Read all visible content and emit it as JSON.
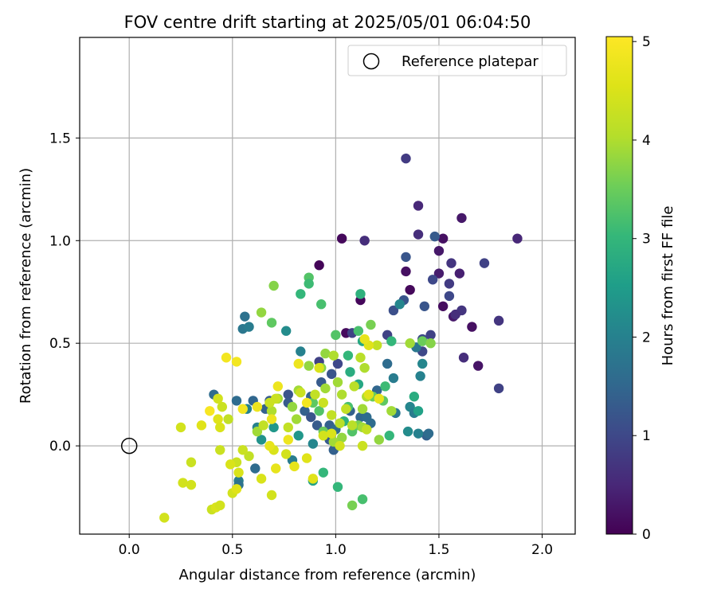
{
  "chart_data": {
    "type": "scatter",
    "title": "FOV centre drift starting at 2025/05/01 06:04:50",
    "xlabel": "Angular distance from reference (arcmin)",
    "ylabel": "Rotation from reference (arcmin)",
    "xlim": [
      -0.24,
      2.16
    ],
    "ylim": [
      -0.43,
      1.99
    ],
    "x_ticks": [
      0.0,
      0.5,
      1.0,
      1.5,
      2.0
    ],
    "x_tick_labels": [
      "0.0",
      "0.5",
      "1.0",
      "1.5",
      "2.0"
    ],
    "y_ticks": [
      0.0,
      0.5,
      1.0,
      1.5
    ],
    "y_tick_labels": [
      "0.0",
      "0.5",
      "1.0",
      "1.5"
    ],
    "grid": true,
    "legend": {
      "position": "top-right",
      "entries": [
        "Reference platepar"
      ]
    },
    "reference_point": {
      "label": "Reference platepar",
      "x": 0.0,
      "y": 0.0,
      "marker": "open-circle"
    },
    "colorbar": {
      "label": "Hours from first FF file",
      "colormap": "viridis",
      "range": [
        0,
        5.05
      ],
      "ticks": [
        0,
        1,
        2,
        3,
        4,
        5
      ],
      "tick_labels": [
        "0",
        "1",
        "2",
        "3",
        "4",
        "5"
      ]
    },
    "points": [
      {
        "x": 0.92,
        "y": 0.88,
        "h": 0.05
      },
      {
        "x": 1.03,
        "y": 1.01,
        "h": 0.1
      },
      {
        "x": 1.12,
        "y": 0.71,
        "h": 0.08
      },
      {
        "x": 1.05,
        "y": 0.55,
        "h": 0.12
      },
      {
        "x": 1.36,
        "y": 0.76,
        "h": 0.1
      },
      {
        "x": 1.34,
        "y": 0.85,
        "h": 0.2
      },
      {
        "x": 1.52,
        "y": 0.68,
        "h": 0.15
      },
      {
        "x": 1.52,
        "y": 1.01,
        "h": 0.2
      },
      {
        "x": 1.61,
        "y": 1.11,
        "h": 0.3
      },
      {
        "x": 1.66,
        "y": 0.58,
        "h": 0.2
      },
      {
        "x": 1.69,
        "y": 0.39,
        "h": 0.25
      },
      {
        "x": 1.57,
        "y": 0.63,
        "h": 0.3
      },
      {
        "x": 1.6,
        "y": 0.84,
        "h": 0.4
      },
      {
        "x": 1.5,
        "y": 0.95,
        "h": 0.3
      },
      {
        "x": 1.5,
        "y": 0.84,
        "h": 0.35
      },
      {
        "x": 1.4,
        "y": 1.17,
        "h": 0.5
      },
      {
        "x": 1.34,
        "y": 1.4,
        "h": 0.8
      },
      {
        "x": 1.4,
        "y": 1.03,
        "h": 0.6
      },
      {
        "x": 1.14,
        "y": 1.0,
        "h": 0.6
      },
      {
        "x": 1.88,
        "y": 1.01,
        "h": 0.5
      },
      {
        "x": 1.79,
        "y": 0.61,
        "h": 0.7
      },
      {
        "x": 1.79,
        "y": 0.28,
        "h": 0.9
      },
      {
        "x": 1.62,
        "y": 0.43,
        "h": 0.6
      },
      {
        "x": 1.61,
        "y": 0.66,
        "h": 0.7
      },
      {
        "x": 1.58,
        "y": 0.64,
        "h": 0.6
      },
      {
        "x": 1.55,
        "y": 0.79,
        "h": 0.8
      },
      {
        "x": 1.56,
        "y": 0.89,
        "h": 0.7
      },
      {
        "x": 1.72,
        "y": 0.89,
        "h": 0.9
      },
      {
        "x": 1.48,
        "y": 1.02,
        "h": 1.3
      },
      {
        "x": 1.47,
        "y": 0.81,
        "h": 1.0
      },
      {
        "x": 1.55,
        "y": 0.73,
        "h": 1.0
      },
      {
        "x": 1.43,
        "y": 0.68,
        "h": 1.2
      },
      {
        "x": 1.46,
        "y": 0.54,
        "h": 0.9
      },
      {
        "x": 1.42,
        "y": 0.52,
        "h": 1.0
      },
      {
        "x": 1.42,
        "y": 0.46,
        "h": 1.0
      },
      {
        "x": 1.33,
        "y": 0.71,
        "h": 1.2
      },
      {
        "x": 1.28,
        "y": 0.66,
        "h": 1.1
      },
      {
        "x": 1.34,
        "y": 0.92,
        "h": 1.2
      },
      {
        "x": 1.25,
        "y": 0.54,
        "h": 0.9
      },
      {
        "x": 1.08,
        "y": 0.55,
        "h": 0.9
      },
      {
        "x": 1.01,
        "y": 0.4,
        "h": 1.0
      },
      {
        "x": 0.92,
        "y": 0.41,
        "h": 0.9
      },
      {
        "x": 0.98,
        "y": 0.35,
        "h": 1.2
      },
      {
        "x": 0.93,
        "y": 0.31,
        "h": 1.3
      },
      {
        "x": 0.88,
        "y": 0.24,
        "h": 1.4
      },
      {
        "x": 0.85,
        "y": 0.17,
        "h": 1.4
      },
      {
        "x": 0.77,
        "y": 0.25,
        "h": 1.2
      },
      {
        "x": 0.77,
        "y": 0.21,
        "h": 1.3
      },
      {
        "x": 0.68,
        "y": 0.22,
        "h": 1.3
      },
      {
        "x": 0.66,
        "y": 0.18,
        "h": 1.4
      },
      {
        "x": 0.6,
        "y": 0.22,
        "h": 1.5
      },
      {
        "x": 0.52,
        "y": 0.22,
        "h": 1.6
      },
      {
        "x": 0.41,
        "y": 0.25,
        "h": 1.6
      },
      {
        "x": 0.56,
        "y": 0.63,
        "h": 1.7
      },
      {
        "x": 0.55,
        "y": 0.57,
        "h": 1.8
      },
      {
        "x": 0.58,
        "y": 0.58,
        "h": 1.9
      },
      {
        "x": 0.76,
        "y": 0.56,
        "h": 2.2
      },
      {
        "x": 0.83,
        "y": 0.46,
        "h": 2.0
      },
      {
        "x": 0.88,
        "y": 0.14,
        "h": 1.2
      },
      {
        "x": 0.91,
        "y": 0.1,
        "h": 1.3
      },
      {
        "x": 0.97,
        "y": 0.1,
        "h": 1.4
      },
      {
        "x": 0.98,
        "y": 0.06,
        "h": 1.3
      },
      {
        "x": 0.97,
        "y": 0.03,
        "h": 1.3
      },
      {
        "x": 0.99,
        "y": -0.02,
        "h": 1.4
      },
      {
        "x": 1.0,
        "y": 0.08,
        "h": 1.6
      },
      {
        "x": 1.07,
        "y": 0.17,
        "h": 1.4
      },
      {
        "x": 1.12,
        "y": 0.14,
        "h": 1.5
      },
      {
        "x": 1.15,
        "y": 0.14,
        "h": 1.6
      },
      {
        "x": 1.17,
        "y": 0.11,
        "h": 1.6
      },
      {
        "x": 1.2,
        "y": 0.27,
        "h": 1.5
      },
      {
        "x": 1.25,
        "y": 0.4,
        "h": 1.6
      },
      {
        "x": 1.28,
        "y": 0.33,
        "h": 1.9
      },
      {
        "x": 1.29,
        "y": 0.16,
        "h": 1.8
      },
      {
        "x": 1.36,
        "y": 0.19,
        "h": 2.1
      },
      {
        "x": 1.38,
        "y": 0.16,
        "h": 1.9
      },
      {
        "x": 1.41,
        "y": 0.34,
        "h": 2.0
      },
      {
        "x": 1.42,
        "y": 0.4,
        "h": 2.1
      },
      {
        "x": 1.44,
        "y": 0.05,
        "h": 1.4
      },
      {
        "x": 1.45,
        "y": 0.06,
        "h": 1.6
      },
      {
        "x": 1.4,
        "y": 0.06,
        "h": 2.0
      },
      {
        "x": 1.35,
        "y": 0.07,
        "h": 2.2
      },
      {
        "x": 1.39,
        "y": 0.48,
        "h": 1.8
      },
      {
        "x": 1.31,
        "y": 0.69,
        "h": 2.1
      },
      {
        "x": 0.61,
        "y": -0.11,
        "h": 1.6
      },
      {
        "x": 0.53,
        "y": -0.17,
        "h": 1.9
      },
      {
        "x": 0.53,
        "y": -0.19,
        "h": 1.7
      },
      {
        "x": 0.7,
        "y": 0.09,
        "h": 2.4
      },
      {
        "x": 0.62,
        "y": 0.09,
        "h": 2.0
      },
      {
        "x": 0.57,
        "y": 0.18,
        "h": 2.0
      },
      {
        "x": 0.64,
        "y": 0.03,
        "h": 2.3
      },
      {
        "x": 0.82,
        "y": 0.05,
        "h": 2.4
      },
      {
        "x": 0.89,
        "y": 0.01,
        "h": 2.1
      },
      {
        "x": 0.79,
        "y": -0.07,
        "h": 1.9
      },
      {
        "x": 0.89,
        "y": -0.17,
        "h": 2.6
      },
      {
        "x": 0.94,
        "y": -0.13,
        "h": 3.0
      },
      {
        "x": 1.01,
        "y": -0.2,
        "h": 3.0
      },
      {
        "x": 1.13,
        "y": -0.26,
        "h": 3.2
      },
      {
        "x": 1.08,
        "y": -0.29,
        "h": 3.6
      },
      {
        "x": 1.04,
        "y": 0.12,
        "h": 2.9
      },
      {
        "x": 1.06,
        "y": 0.19,
        "h": 3.2
      },
      {
        "x": 1.11,
        "y": 0.3,
        "h": 2.7
      },
      {
        "x": 1.07,
        "y": 0.36,
        "h": 2.8
      },
      {
        "x": 1.06,
        "y": 0.44,
        "h": 3.0
      },
      {
        "x": 1.13,
        "y": 0.51,
        "h": 2.7
      },
      {
        "x": 1.12,
        "y": 0.74,
        "h": 2.9
      },
      {
        "x": 0.87,
        "y": 0.82,
        "h": 3.3
      },
      {
        "x": 0.87,
        "y": 0.79,
        "h": 3.1
      },
      {
        "x": 0.93,
        "y": 0.69,
        "h": 3.2
      },
      {
        "x": 0.83,
        "y": 0.74,
        "h": 3.0
      },
      {
        "x": 0.7,
        "y": 0.78,
        "h": 3.7
      },
      {
        "x": 0.64,
        "y": 0.65,
        "h": 3.8
      },
      {
        "x": 0.69,
        "y": 0.6,
        "h": 3.4
      },
      {
        "x": 1.0,
        "y": 0.54,
        "h": 3.3
      },
      {
        "x": 1.17,
        "y": 0.59,
        "h": 3.6
      },
      {
        "x": 1.11,
        "y": 0.56,
        "h": 3.2
      },
      {
        "x": 1.27,
        "y": 0.51,
        "h": 3.0
      },
      {
        "x": 1.36,
        "y": 0.5,
        "h": 3.9
      },
      {
        "x": 1.42,
        "y": 0.51,
        "h": 3.5
      },
      {
        "x": 1.46,
        "y": 0.5,
        "h": 3.7
      },
      {
        "x": 1.38,
        "y": 0.24,
        "h": 2.8
      },
      {
        "x": 1.4,
        "y": 0.17,
        "h": 2.6
      },
      {
        "x": 1.26,
        "y": 0.05,
        "h": 3.0
      },
      {
        "x": 1.21,
        "y": 0.03,
        "h": 3.8
      },
      {
        "x": 1.23,
        "y": 0.22,
        "h": 3.4
      },
      {
        "x": 1.24,
        "y": 0.29,
        "h": 3.1
      },
      {
        "x": 1.18,
        "y": 0.24,
        "h": 3.5
      },
      {
        "x": 1.13,
        "y": 0.18,
        "h": 3.9
      },
      {
        "x": 1.11,
        "y": 0.1,
        "h": 3.6
      },
      {
        "x": 1.08,
        "y": 0.07,
        "h": 3.3
      },
      {
        "x": 1.03,
        "y": 0.04,
        "h": 3.8
      },
      {
        "x": 0.99,
        "y": 0.02,
        "h": 3.9
      },
      {
        "x": 0.94,
        "y": 0.07,
        "h": 3.5
      },
      {
        "x": 0.92,
        "y": 0.17,
        "h": 3.3
      },
      {
        "x": 0.89,
        "y": 0.21,
        "h": 3.4
      },
      {
        "x": 0.95,
        "y": 0.28,
        "h": 3.9
      },
      {
        "x": 0.93,
        "y": 0.38,
        "h": 3.7
      },
      {
        "x": 0.87,
        "y": 0.39,
        "h": 3.8
      },
      {
        "x": 0.82,
        "y": 0.27,
        "h": 3.9
      },
      {
        "x": 0.79,
        "y": 0.19,
        "h": 3.8
      },
      {
        "x": 0.72,
        "y": 0.23,
        "h": 3.9
      },
      {
        "x": 0.69,
        "y": 0.17,
        "h": 4.0
      },
      {
        "x": 0.62,
        "y": 0.07,
        "h": 3.9
      },
      {
        "x": 0.95,
        "y": 0.45,
        "h": 3.8
      },
      {
        "x": 0.99,
        "y": 0.44,
        "h": 4.0
      },
      {
        "x": 1.01,
        "y": 0.31,
        "h": 3.9
      },
      {
        "x": 1.03,
        "y": 0.25,
        "h": 4.0
      },
      {
        "x": 1.05,
        "y": 0.18,
        "h": 4.2
      },
      {
        "x": 1.09,
        "y": 0.29,
        "h": 4.1
      },
      {
        "x": 1.12,
        "y": 0.43,
        "h": 4.1
      },
      {
        "x": 1.14,
        "y": 0.38,
        "h": 4.0
      },
      {
        "x": 1.2,
        "y": 0.49,
        "h": 4.2
      },
      {
        "x": 1.27,
        "y": 0.17,
        "h": 3.9
      },
      {
        "x": 1.15,
        "y": 0.24,
        "h": 4.0
      },
      {
        "x": 1.13,
        "y": 0.09,
        "h": 3.9
      },
      {
        "x": 1.08,
        "y": 0.1,
        "h": 4.1
      },
      {
        "x": 1.02,
        "y": 0.11,
        "h": 4.1
      },
      {
        "x": 0.98,
        "y": 0.15,
        "h": 4.2
      },
      {
        "x": 0.94,
        "y": 0.21,
        "h": 4.3
      },
      {
        "x": 0.9,
        "y": 0.25,
        "h": 4.2
      },
      {
        "x": 0.83,
        "y": 0.26,
        "h": 4.3
      },
      {
        "x": 0.81,
        "y": 0.13,
        "h": 3.9
      },
      {
        "x": 0.77,
        "y": 0.09,
        "h": 4.2
      },
      {
        "x": 0.71,
        "y": 0.23,
        "h": 4.3
      },
      {
        "x": 0.68,
        "y": 0.21,
        "h": 4.3
      },
      {
        "x": 0.65,
        "y": 0.1,
        "h": 4.2
      },
      {
        "x": 0.58,
        "y": -0.05,
        "h": 4.2
      },
      {
        "x": 0.55,
        "y": -0.02,
        "h": 4.3
      },
      {
        "x": 0.52,
        "y": -0.08,
        "h": 4.3
      },
      {
        "x": 0.49,
        "y": -0.09,
        "h": 4.5
      },
      {
        "x": 0.44,
        "y": -0.02,
        "h": 4.3
      },
      {
        "x": 0.48,
        "y": 0.13,
        "h": 4.2
      },
      {
        "x": 0.45,
        "y": 0.19,
        "h": 4.3
      },
      {
        "x": 0.43,
        "y": 0.23,
        "h": 4.4
      },
      {
        "x": 0.43,
        "y": 0.13,
        "h": 4.6
      },
      {
        "x": 0.44,
        "y": 0.09,
        "h": 4.5
      },
      {
        "x": 0.35,
        "y": 0.1,
        "h": 4.6
      },
      {
        "x": 0.25,
        "y": 0.09,
        "h": 4.4
      },
      {
        "x": 0.3,
        "y": -0.08,
        "h": 4.3
      },
      {
        "x": 0.26,
        "y": -0.18,
        "h": 4.4
      },
      {
        "x": 0.3,
        "y": -0.19,
        "h": 4.4
      },
      {
        "x": 0.4,
        "y": -0.31,
        "h": 4.3
      },
      {
        "x": 0.42,
        "y": -0.3,
        "h": 4.5
      },
      {
        "x": 0.44,
        "y": -0.29,
        "h": 4.4
      },
      {
        "x": 0.17,
        "y": -0.35,
        "h": 4.4
      },
      {
        "x": 0.5,
        "y": -0.23,
        "h": 4.4
      },
      {
        "x": 0.52,
        "y": -0.21,
        "h": 4.6
      },
      {
        "x": 0.53,
        "y": -0.13,
        "h": 4.5
      },
      {
        "x": 0.64,
        "y": -0.16,
        "h": 4.5
      },
      {
        "x": 0.69,
        "y": -0.24,
        "h": 4.4
      },
      {
        "x": 0.7,
        "y": -0.02,
        "h": 4.5
      },
      {
        "x": 0.76,
        "y": -0.04,
        "h": 4.4
      },
      {
        "x": 0.86,
        "y": -0.06,
        "h": 4.6
      },
      {
        "x": 0.89,
        "y": -0.16,
        "h": 4.6
      },
      {
        "x": 0.8,
        "y": -0.1,
        "h": 4.7
      },
      {
        "x": 0.68,
        "y": 0.0,
        "h": 4.7
      },
      {
        "x": 0.71,
        "y": -0.11,
        "h": 4.7
      },
      {
        "x": 0.77,
        "y": 0.03,
        "h": 4.8
      },
      {
        "x": 0.82,
        "y": 0.4,
        "h": 4.8
      },
      {
        "x": 0.72,
        "y": 0.29,
        "h": 4.8
      },
      {
        "x": 0.69,
        "y": 0.13,
        "h": 4.8
      },
      {
        "x": 0.62,
        "y": 0.19,
        "h": 4.8
      },
      {
        "x": 0.55,
        "y": 0.18,
        "h": 4.9
      },
      {
        "x": 0.47,
        "y": 0.43,
        "h": 4.9
      },
      {
        "x": 0.52,
        "y": 0.41,
        "h": 4.9
      },
      {
        "x": 0.39,
        "y": 0.17,
        "h": 4.95
      },
      {
        "x": 0.86,
        "y": 0.21,
        "h": 4.9
      },
      {
        "x": 1.16,
        "y": 0.49,
        "h": 4.6
      },
      {
        "x": 1.14,
        "y": 0.52,
        "h": 4.7
      },
      {
        "x": 1.16,
        "y": 0.25,
        "h": 4.6
      },
      {
        "x": 1.21,
        "y": 0.23,
        "h": 4.7
      },
      {
        "x": 1.13,
        "y": 0.0,
        "h": 4.3
      },
      {
        "x": 1.15,
        "y": 0.08,
        "h": 4.2
      },
      {
        "x": 0.94,
        "y": 0.05,
        "h": 4.4
      },
      {
        "x": 1.02,
        "y": 0.0,
        "h": 4.4
      },
      {
        "x": 0.98,
        "y": 0.06,
        "h": 4.5
      },
      {
        "x": 0.92,
        "y": 0.38,
        "h": 4.5
      }
    ]
  }
}
